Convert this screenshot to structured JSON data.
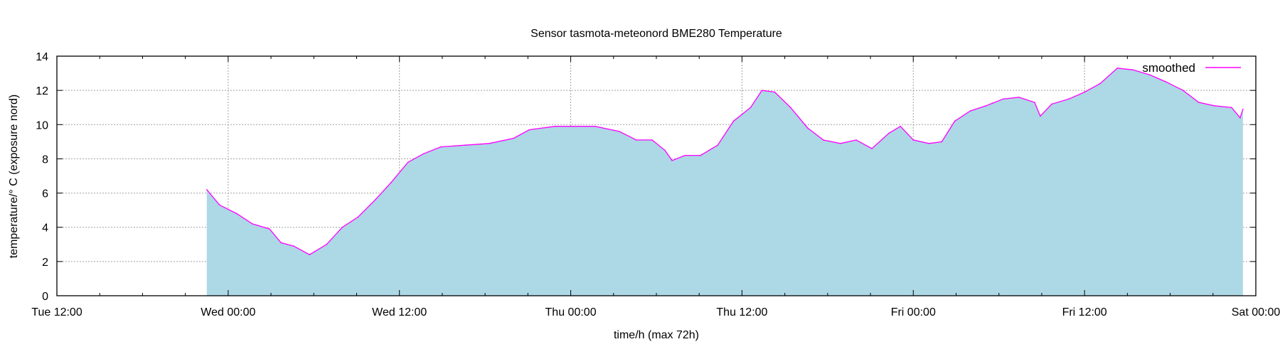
{
  "chart_data": {
    "type": "area",
    "title": "Sensor tasmota-meteonord BME280 Temperature",
    "xlabel": "time/h (max 72h)",
    "ylabel": "temperature/° C (exposure nord)",
    "x_unit": "hours since Tue 12:00",
    "xlim": [
      0,
      84
    ],
    "ylim": [
      0,
      14
    ],
    "grid": true,
    "legend_position": "top-right",
    "x_ticks": [
      {
        "value": 0,
        "label": "Tue 12:00"
      },
      {
        "value": 12,
        "label": "Wed 00:00"
      },
      {
        "value": 24,
        "label": "Wed 12:00"
      },
      {
        "value": 36,
        "label": "Thu 00:00"
      },
      {
        "value": 48,
        "label": "Thu 12:00"
      },
      {
        "value": 60,
        "label": "Fri 00:00"
      },
      {
        "value": 72,
        "label": "Fri 12:00"
      },
      {
        "value": 84,
        "label": "Sat 00:00"
      }
    ],
    "y_ticks": [
      {
        "value": 0,
        "label": "0"
      },
      {
        "value": 2,
        "label": "2"
      },
      {
        "value": 4,
        "label": "4"
      },
      {
        "value": 6,
        "label": "6"
      },
      {
        "value": 8,
        "label": "8"
      },
      {
        "value": 10,
        "label": "10"
      },
      {
        "value": 12,
        "label": "12"
      },
      {
        "value": 14,
        "label": "14"
      }
    ],
    "series": [
      {
        "name": "smoothed",
        "line_color": "#ff00ff",
        "fill_color": "#add8e6",
        "x": [
          10.5,
          11.4,
          12.6,
          13.7,
          14.9,
          15.7,
          16.6,
          17.7,
          18.9,
          20,
          21.1,
          22.3,
          23.4,
          24.6,
          25.7,
          26.9,
          28.6,
          30.3,
          32,
          33.1,
          34.9,
          36,
          37.7,
          39.4,
          40.6,
          41.7,
          42.6,
          43.1,
          44,
          45.1,
          46.3,
          47.4,
          48.6,
          49.4,
          50.3,
          51.4,
          52.6,
          53.7,
          54.9,
          56,
          57.1,
          58.3,
          59.1,
          60,
          61.1,
          62,
          62.9,
          64,
          65.1,
          66.3,
          67.4,
          68.5,
          68.9,
          69.7,
          70.9,
          72,
          73.1,
          74.3,
          75.4,
          76.6,
          77.7,
          78.9,
          80,
          81.1,
          82.3,
          82.9,
          83.1
        ],
        "y": [
          6.2,
          5.3,
          4.8,
          4.2,
          3.9,
          3.1,
          2.9,
          2.4,
          3.0,
          4.0,
          4.6,
          5.6,
          6.6,
          7.8,
          8.3,
          8.7,
          8.8,
          8.9,
          9.2,
          9.7,
          9.9,
          9.9,
          9.9,
          9.6,
          9.1,
          9.1,
          8.5,
          7.9,
          8.2,
          8.2,
          8.8,
          10.2,
          11.0,
          12.0,
          11.9,
          11.0,
          9.8,
          9.1,
          8.9,
          9.1,
          8.6,
          9.5,
          9.9,
          9.1,
          8.9,
          9.0,
          10.2,
          10.8,
          11.1,
          11.5,
          11.6,
          11.3,
          10.5,
          11.2,
          11.5,
          11.9,
          12.4,
          13.3,
          13.2,
          12.9,
          12.5,
          12.0,
          11.3,
          11.1,
          11.0,
          10.4,
          10.9
        ]
      }
    ]
  }
}
